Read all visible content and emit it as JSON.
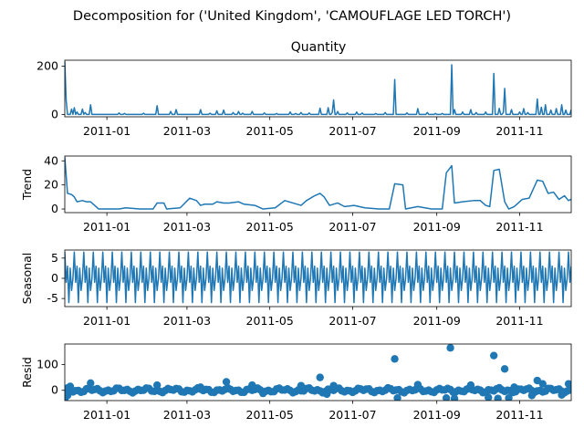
{
  "figure": {
    "suptitle": "Decomposition for ('United Kingdom', 'CAMOUFLAGE LED TORCH')"
  },
  "colors": {
    "series": "#1f77b4",
    "axis": "#000000",
    "background": "#ffffff"
  },
  "chart_data": [
    {
      "id": "quantity",
      "type": "line",
      "title": "Quantity",
      "ylabel": "",
      "xlim": [
        "2010-12-01",
        "2011-12-09"
      ],
      "ylim": [
        -10,
        225
      ],
      "yticks": [
        0,
        200
      ],
      "xticks": [
        "2011-01",
        "2011-03",
        "2011-05",
        "2011-07",
        "2011-09",
        "2011-11"
      ],
      "baseline": 0,
      "spikes": [
        [
          "2010-12-01",
          220
        ],
        [
          "2010-12-02",
          60
        ],
        [
          "2010-12-06",
          22
        ],
        [
          "2010-12-08",
          28
        ],
        [
          "2010-12-10",
          10
        ],
        [
          "2010-12-14",
          22
        ],
        [
          "2010-12-16",
          8
        ],
        [
          "2010-12-20",
          40
        ],
        [
          "2011-01-10",
          6
        ],
        [
          "2011-01-14",
          4
        ],
        [
          "2011-01-28",
          5
        ],
        [
          "2011-02-07",
          36
        ],
        [
          "2011-02-17",
          12
        ],
        [
          "2011-02-21",
          20
        ],
        [
          "2011-03-11",
          20
        ],
        [
          "2011-03-18",
          5
        ],
        [
          "2011-03-23",
          15
        ],
        [
          "2011-03-28",
          18
        ],
        [
          "2011-04-04",
          8
        ],
        [
          "2011-04-08",
          12
        ],
        [
          "2011-04-11",
          5
        ],
        [
          "2011-04-18",
          12
        ],
        [
          "2011-04-27",
          6
        ],
        [
          "2011-05-06",
          4
        ],
        [
          "2011-05-16",
          10
        ],
        [
          "2011-05-20",
          4
        ],
        [
          "2011-05-24",
          8
        ],
        [
          "2011-05-30",
          6
        ],
        [
          "2011-06-07",
          26
        ],
        [
          "2011-06-13",
          28
        ],
        [
          "2011-06-16",
          8
        ],
        [
          "2011-06-17",
          60
        ],
        [
          "2011-06-20",
          12
        ],
        [
          "2011-06-27",
          6
        ],
        [
          "2011-07-04",
          10
        ],
        [
          "2011-07-08",
          6
        ],
        [
          "2011-07-18",
          4
        ],
        [
          "2011-07-25",
          8
        ],
        [
          "2011-08-01",
          145
        ],
        [
          "2011-08-10",
          6
        ],
        [
          "2011-08-18",
          24
        ],
        [
          "2011-08-25",
          8
        ],
        [
          "2011-08-31",
          4
        ],
        [
          "2011-09-05",
          4
        ],
        [
          "2011-09-12",
          206
        ],
        [
          "2011-09-14",
          20
        ],
        [
          "2011-09-20",
          10
        ],
        [
          "2011-09-26",
          20
        ],
        [
          "2011-09-30",
          8
        ],
        [
          "2011-10-07",
          10
        ],
        [
          "2011-10-13",
          170
        ],
        [
          "2011-10-17",
          25
        ],
        [
          "2011-10-20",
          8
        ],
        [
          "2011-10-21",
          108
        ],
        [
          "2011-10-26",
          20
        ],
        [
          "2011-11-01",
          10
        ],
        [
          "2011-11-04",
          24
        ],
        [
          "2011-11-07",
          8
        ],
        [
          "2011-11-14",
          64
        ],
        [
          "2011-11-17",
          30
        ],
        [
          "2011-11-20",
          40
        ],
        [
          "2011-11-24",
          18
        ],
        [
          "2011-11-28",
          24
        ],
        [
          "2011-12-02",
          40
        ],
        [
          "2011-12-05",
          18
        ],
        [
          "2011-12-09",
          20
        ]
      ]
    },
    {
      "id": "trend",
      "type": "line",
      "ylabel": "Trend",
      "xlim": [
        "2010-12-01",
        "2011-12-09"
      ],
      "ylim": [
        -3,
        44
      ],
      "yticks": [
        0,
        20,
        40
      ],
      "xticks": [
        "2011-01",
        "2011-03",
        "2011-05",
        "2011-07",
        "2011-09",
        "2011-11"
      ],
      "points": [
        [
          "2010-12-01",
          43
        ],
        [
          "2010-12-03",
          13
        ],
        [
          "2010-12-06",
          12
        ],
        [
          "2010-12-08",
          10
        ],
        [
          "2010-12-10",
          6
        ],
        [
          "2010-12-14",
          7
        ],
        [
          "2010-12-17",
          6
        ],
        [
          "2010-12-20",
          6
        ],
        [
          "2010-12-23",
          3
        ],
        [
          "2010-12-26",
          0
        ],
        [
          "2011-01-10",
          0
        ],
        [
          "2011-01-15",
          1
        ],
        [
          "2011-01-25",
          0
        ],
        [
          "2011-02-04",
          0
        ],
        [
          "2011-02-07",
          5
        ],
        [
          "2011-02-12",
          5
        ],
        [
          "2011-02-14",
          0
        ],
        [
          "2011-02-24",
          1
        ],
        [
          "2011-03-03",
          9
        ],
        [
          "2011-03-08",
          7
        ],
        [
          "2011-03-11",
          3
        ],
        [
          "2011-03-14",
          4
        ],
        [
          "2011-03-20",
          4
        ],
        [
          "2011-03-23",
          6
        ],
        [
          "2011-03-28",
          5
        ],
        [
          "2011-04-01",
          5
        ],
        [
          "2011-04-08",
          6
        ],
        [
          "2011-04-12",
          4
        ],
        [
          "2011-04-20",
          3
        ],
        [
          "2011-04-26",
          0
        ],
        [
          "2011-05-05",
          1
        ],
        [
          "2011-05-12",
          7
        ],
        [
          "2011-05-18",
          5
        ],
        [
          "2011-05-24",
          3
        ],
        [
          "2011-05-28",
          7
        ],
        [
          "2011-06-03",
          11
        ],
        [
          "2011-06-07",
          13
        ],
        [
          "2011-06-10",
          10
        ],
        [
          "2011-06-14",
          3
        ],
        [
          "2011-06-20",
          5
        ],
        [
          "2011-06-25",
          2
        ],
        [
          "2011-07-02",
          3
        ],
        [
          "2011-07-10",
          1
        ],
        [
          "2011-07-20",
          0
        ],
        [
          "2011-07-28",
          0
        ],
        [
          "2011-08-01",
          21
        ],
        [
          "2011-08-07",
          20
        ],
        [
          "2011-08-09",
          0
        ],
        [
          "2011-08-18",
          2
        ],
        [
          "2011-08-28",
          0
        ],
        [
          "2011-09-05",
          0
        ],
        [
          "2011-09-08",
          30
        ],
        [
          "2011-09-12",
          36
        ],
        [
          "2011-09-14",
          5
        ],
        [
          "2011-09-20",
          6
        ],
        [
          "2011-09-28",
          7
        ],
        [
          "2011-10-03",
          7
        ],
        [
          "2011-10-07",
          3
        ],
        [
          "2011-10-10",
          2
        ],
        [
          "2011-10-13",
          32
        ],
        [
          "2011-10-17",
          33
        ],
        [
          "2011-10-21",
          6
        ],
        [
          "2011-10-24",
          0
        ],
        [
          "2011-10-28",
          2
        ],
        [
          "2011-11-03",
          8
        ],
        [
          "2011-11-08",
          9
        ],
        [
          "2011-11-14",
          24
        ],
        [
          "2011-11-18",
          23
        ],
        [
          "2011-11-22",
          13
        ],
        [
          "2011-11-26",
          14
        ],
        [
          "2011-11-30",
          8
        ],
        [
          "2011-12-04",
          11
        ],
        [
          "2011-12-07",
          7
        ],
        [
          "2011-12-09",
          8
        ]
      ]
    },
    {
      "id": "seasonal",
      "type": "line",
      "ylabel": "Seasonal",
      "xlim": [
        "2010-12-01",
        "2011-12-09"
      ],
      "ylim": [
        -7,
        7
      ],
      "yticks": [
        -5,
        0,
        5
      ],
      "xticks": [
        "2011-01",
        "2011-03",
        "2011-05",
        "2011-07",
        "2011-09",
        "2011-11"
      ],
      "period_days": 7,
      "pattern": [
        6.5,
        -1,
        3,
        -6,
        2.5,
        -3,
        0
      ]
    },
    {
      "id": "resid",
      "type": "scatter",
      "ylabel": "Resid",
      "xlim": [
        "2010-12-01",
        "2011-12-09"
      ],
      "ylim": [
        -40,
        180
      ],
      "yticks": [
        0,
        100
      ],
      "xticks": [
        "2011-01",
        "2011-03",
        "2011-05",
        "2011-07",
        "2011-09",
        "2011-11"
      ],
      "points": [
        [
          "2011-08-01",
          122
        ],
        [
          "2011-09-11",
          165
        ],
        [
          "2011-10-13",
          135
        ],
        [
          "2011-10-21",
          83
        ],
        [
          "2011-06-07",
          50
        ],
        [
          "2011-03-30",
          33
        ],
        [
          "2010-12-20",
          28
        ],
        [
          "2011-11-14",
          38
        ],
        [
          "2011-11-18",
          25
        ],
        [
          "2011-12-07",
          25
        ],
        [
          "2011-09-26",
          20
        ],
        [
          "2010-12-05",
          15
        ],
        [
          "2011-02-07",
          20
        ],
        [
          "2011-04-18",
          20
        ],
        [
          "2011-05-24",
          18
        ],
        [
          "2011-06-17",
          18
        ],
        [
          "2011-08-18",
          22
        ],
        [
          "2011-10-28",
          12
        ],
        [
          "2011-03-11",
          12
        ],
        [
          "2010-12-01",
          -32
        ],
        [
          "2010-12-03",
          -20
        ],
        [
          "2011-08-03",
          -30
        ],
        [
          "2011-09-08",
          -30
        ],
        [
          "2011-09-14",
          -32
        ],
        [
          "2011-10-09",
          -28
        ],
        [
          "2011-10-16",
          -32
        ],
        [
          "2011-10-24",
          -30
        ],
        [
          "2011-11-10",
          -20
        ],
        [
          "2011-12-02",
          -18
        ],
        [
          "2011-06-12",
          -15
        ],
        [
          "2011-04-26",
          -12
        ]
      ],
      "band": {
        "from": "2010-12-01",
        "to": "2011-12-09",
        "step_days": 2,
        "range": [
          -10,
          10
        ]
      }
    }
  ]
}
